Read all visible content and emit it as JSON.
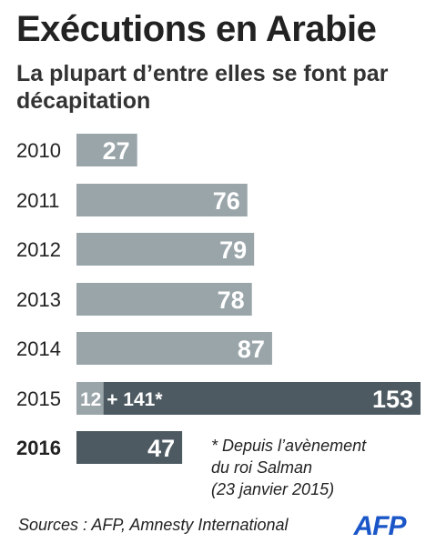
{
  "title": "Exécutions en Arabie",
  "subtitle": "La plupart d’entre elles se font par décapitation",
  "note_lines": [
    "* Depuis l’avènement",
    "du roi  Salman",
    "(23 janvier 2015)"
  ],
  "sources": "Sources : AFP, Amnesty International",
  "logo_text": "AFP",
  "colors": {
    "bar": "#9aa5aa",
    "bar_highlight": "#4e5a62",
    "logo": "#1a56c8"
  },
  "chart_data": {
    "type": "bar",
    "orientation": "horizontal",
    "categories": [
      "2010",
      "2011",
      "2012",
      "2013",
      "2014",
      "2015",
      "2016"
    ],
    "values": [
      27,
      76,
      79,
      78,
      87,
      153,
      47
    ],
    "segments_2015": {
      "before_salman": 12,
      "after_salman": 141,
      "label": "12 + 141*"
    },
    "highlight_category": "2016"
  }
}
